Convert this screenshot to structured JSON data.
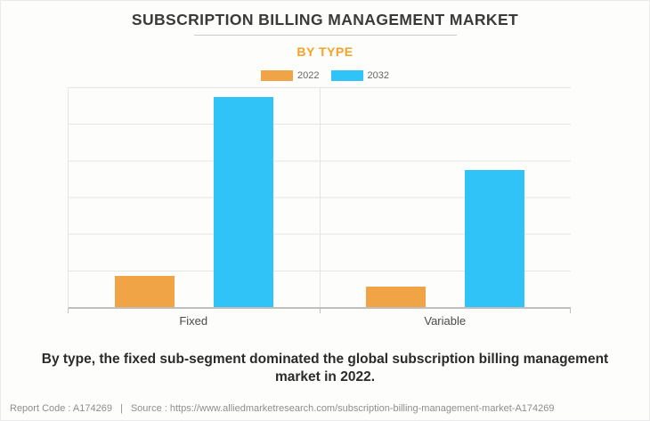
{
  "page": {
    "background": "#fdfdfb",
    "border_color": "#ebebeb"
  },
  "header": {
    "title": "SUBSCRIPTION BILLING MANAGEMENT MARKET",
    "subtitle": "BY TYPE",
    "title_color": "#3a3a3a",
    "subtitle_color": "#f5a227"
  },
  "legend": {
    "items": [
      {
        "label": "2022",
        "color": "#f0a445"
      },
      {
        "label": "2032",
        "color": "#30c3f8"
      }
    ]
  },
  "chart_data": {
    "type": "bar",
    "title": "SUBSCRIPTION BILLING MANAGEMENT MARKET",
    "subtitle": "BY TYPE",
    "categories": [
      "Fixed",
      "Variable"
    ],
    "series": [
      {
        "name": "2022",
        "color": "#f0a445",
        "values": [
          14.2,
          9.3
        ]
      },
      {
        "name": "2032",
        "color": "#30c3f8",
        "values": [
          95.5,
          62.3
        ]
      }
    ],
    "xlabel": "",
    "ylabel": "",
    "ylim": [
      0,
      100
    ],
    "value_axis_note": "no numeric tick labels shown in chart; values are relative bar heights as % of plot height",
    "gridline_intervals": 6,
    "grid": true,
    "legend_position": "top-center"
  },
  "description": "By type, the fixed sub-segment dominated the global subscription billing management market in 2022.",
  "footer": {
    "report_code": "Report Code : A174269",
    "separator": "|",
    "source": "Source : https://www.alliedmarketresearch.com/subscription-billing-management-market-A174269"
  }
}
